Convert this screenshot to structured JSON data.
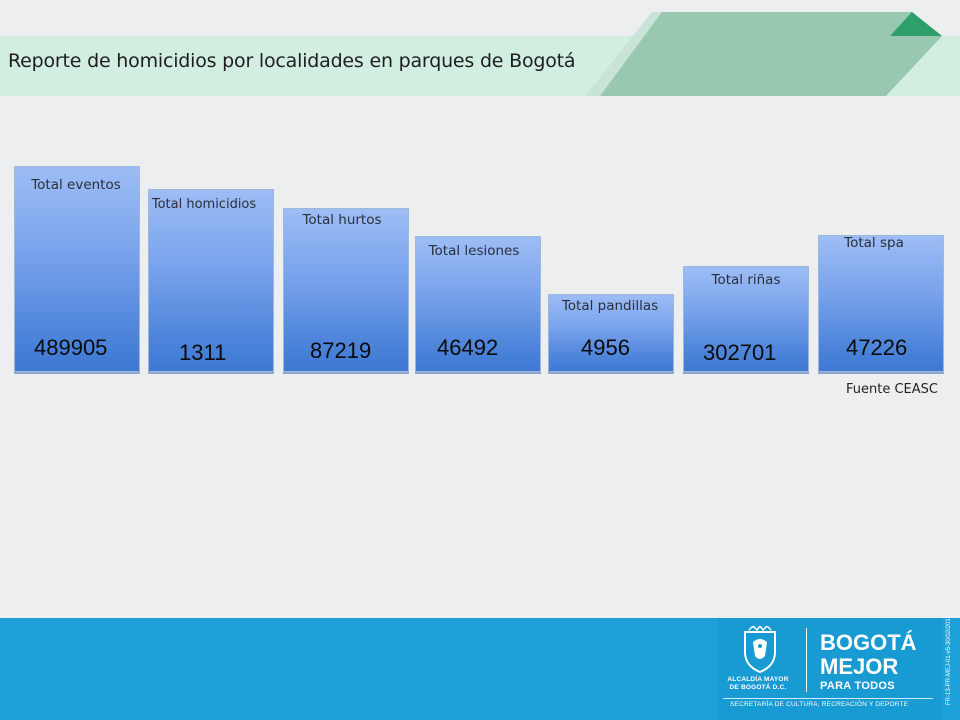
{
  "header": {
    "title": "Reporte de homicidios por localidades en parques de Bogotá"
  },
  "cards": [
    {
      "label": "Total eventos",
      "value": "489905"
    },
    {
      "label": "Total homicidios",
      "value": "1311"
    },
    {
      "label": "Total hurtos",
      "value": "87219"
    },
    {
      "label": "Total lesiones",
      "value": "46492"
    },
    {
      "label": "Total pandillas",
      "value": "4956"
    },
    {
      "label": "Total riñas",
      "value": "302701"
    },
    {
      "label": "Total spa",
      "value": "47226"
    }
  ],
  "source": "Fuente CEASC",
  "footer": {
    "alcaldia_line1": "ALCALDÍA MAYOR",
    "alcaldia_line2": "DE BOGOTÁ D.C.",
    "brand_line1": "BOGOTÁ",
    "brand_line2": "MEJOR",
    "brand_line3": "PARA TODOS",
    "secretaria": "SECRETARÍA DE CULTURA, RECREACIÓN Y DEPORTE",
    "doc_code": "FR-13-PR-MEJ-01-v5-30/02/2016"
  },
  "colors": {
    "title_band": "#d2eee0",
    "deco_dark": "#2e9e6a",
    "deco_light": "#98c8b0",
    "card_top": "#9dbdf5",
    "card_bottom": "#3d78d3",
    "footer": "#1ea0d8"
  }
}
